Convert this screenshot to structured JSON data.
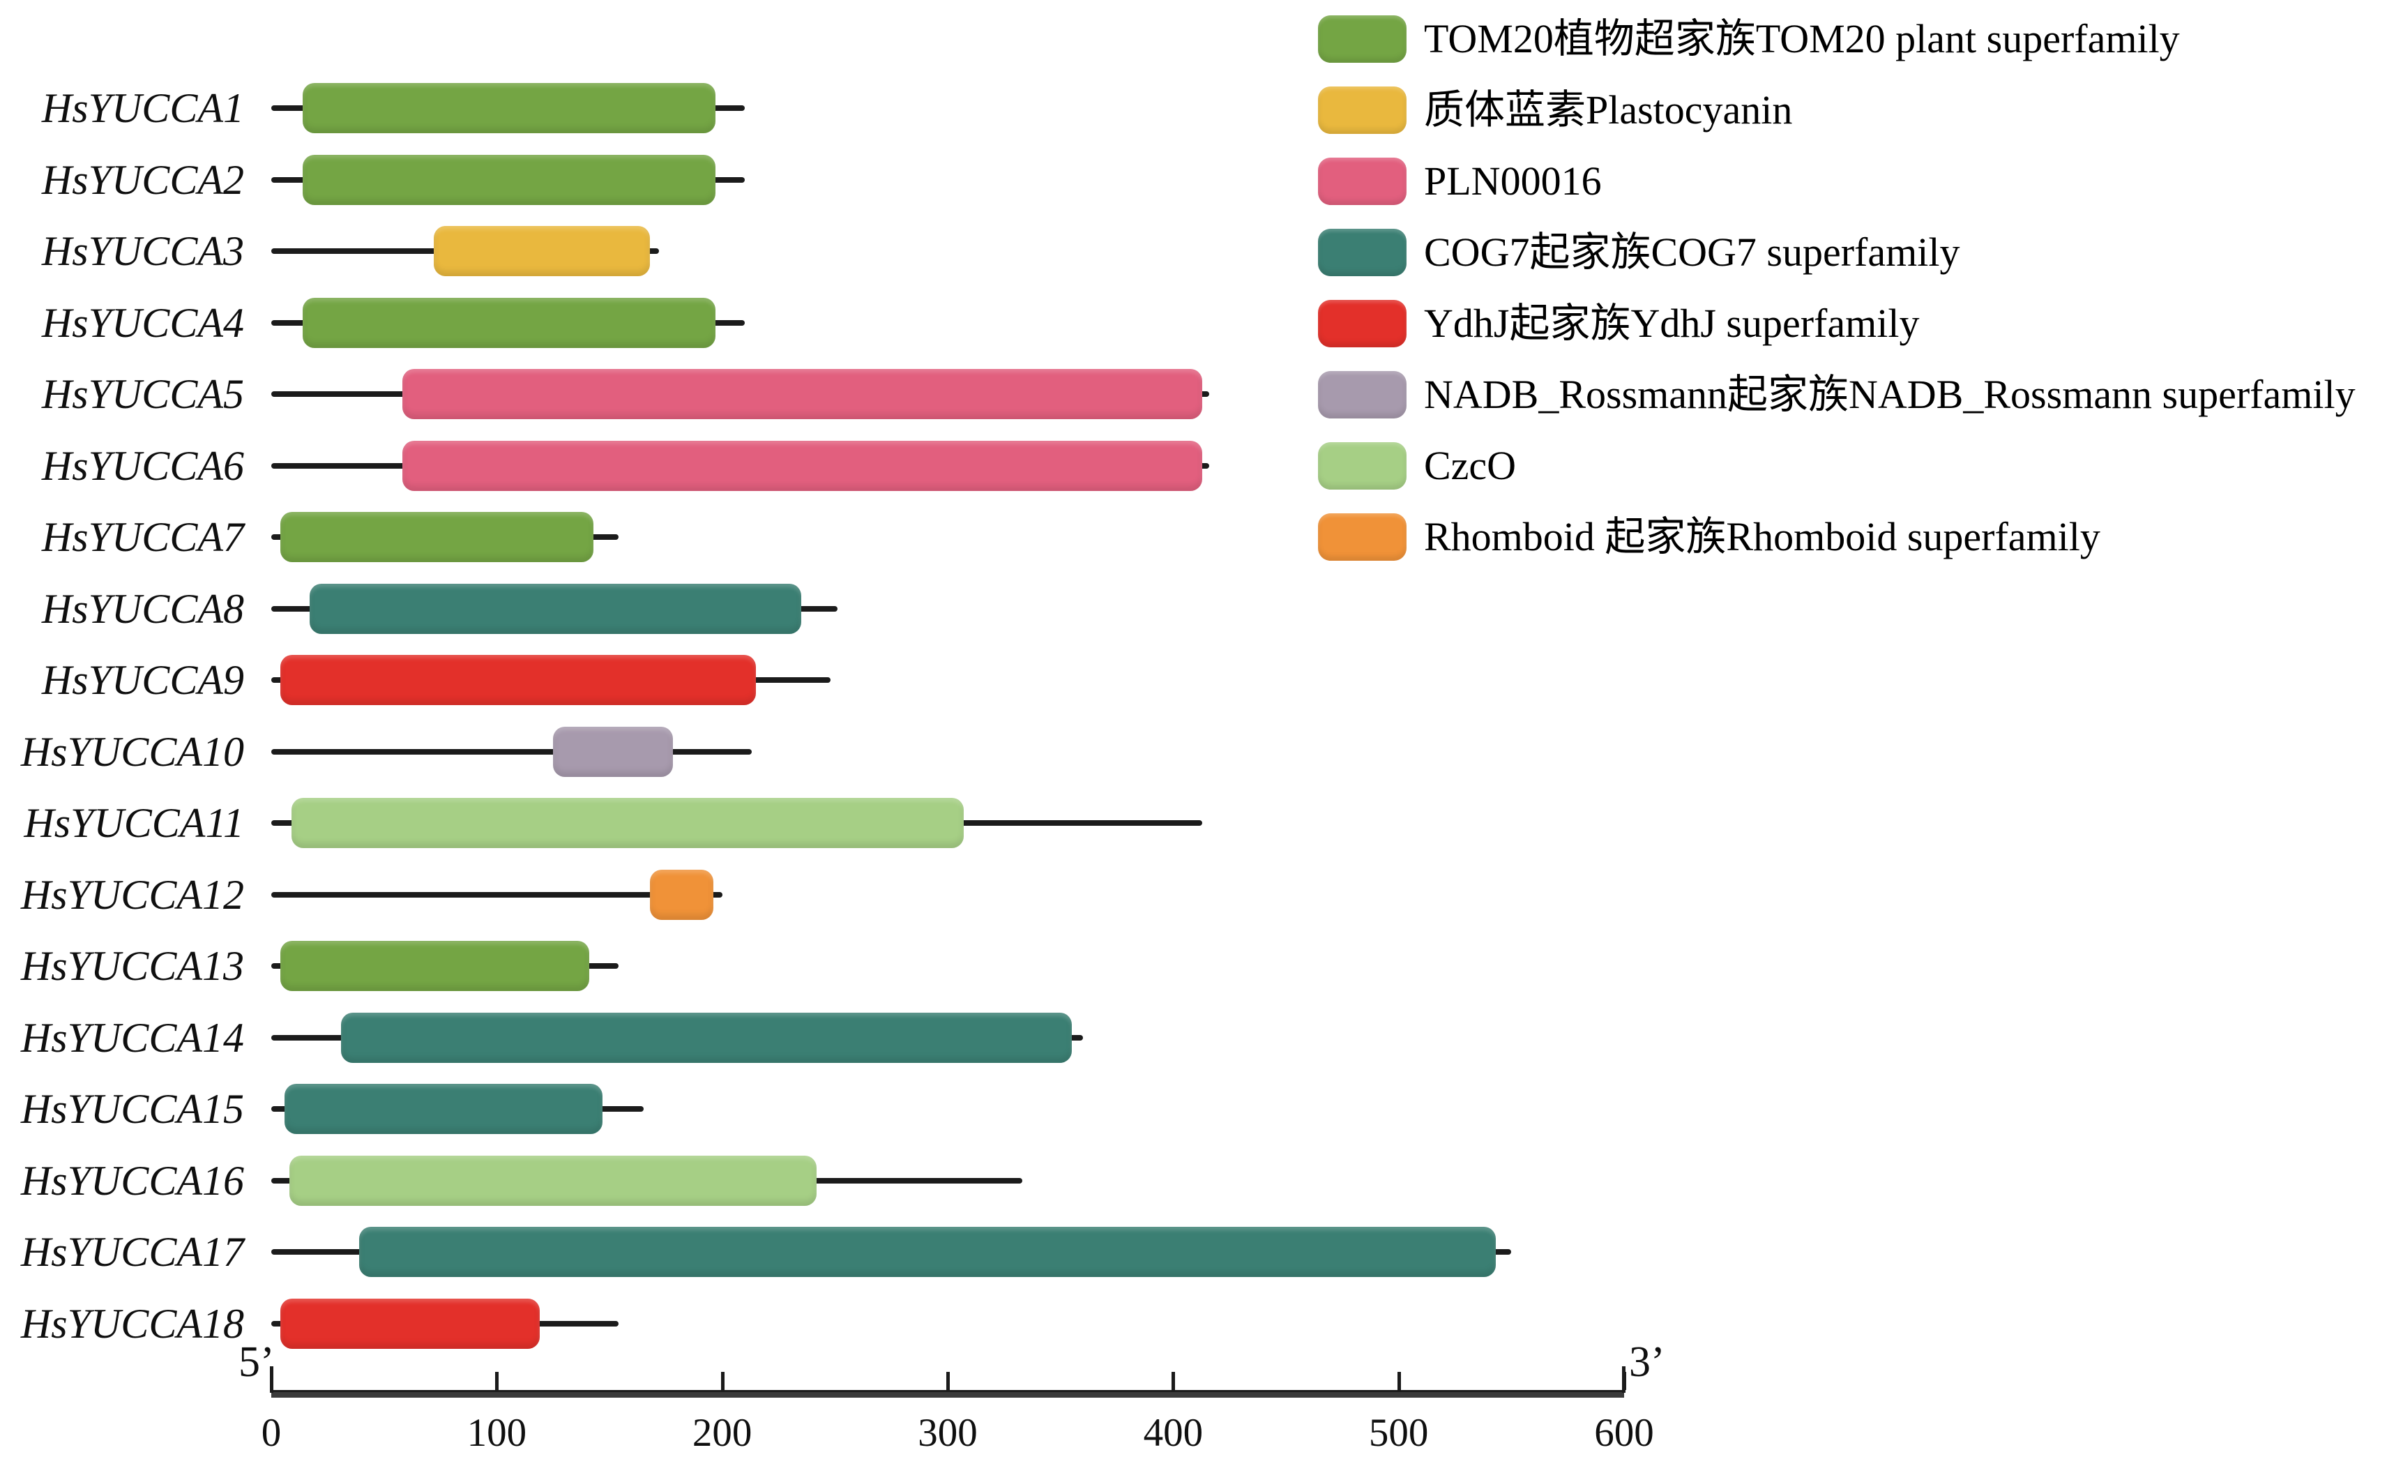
{
  "chart_data": {
    "type": "bar",
    "subtype": "gene-domain-architecture",
    "orientation": "horizontal",
    "x_axis": {
      "min": 0,
      "max": 600,
      "ticks": [
        0,
        100,
        200,
        300,
        400,
        500,
        600
      ],
      "left_label": "5’",
      "right_label": "3’",
      "grid": false
    },
    "rows": [
      {
        "gene": "HsYUCCA1",
        "domain": "TOM20 plant superfamily",
        "color": "tom20",
        "line_start": 0,
        "line_end": 210,
        "domain_start": 14,
        "domain_end": 197
      },
      {
        "gene": "HsYUCCA2",
        "domain": "TOM20 plant superfamily",
        "color": "tom20",
        "line_start": 0,
        "line_end": 210,
        "domain_start": 14,
        "domain_end": 197
      },
      {
        "gene": "HsYUCCA3",
        "domain": "Plastocyanin",
        "color": "plastocyanin",
        "line_start": 0,
        "line_end": 172,
        "domain_start": 72,
        "domain_end": 168
      },
      {
        "gene": "HsYUCCA4",
        "domain": "TOM20 plant superfamily",
        "color": "tom20",
        "line_start": 0,
        "line_end": 210,
        "domain_start": 14,
        "domain_end": 197
      },
      {
        "gene": "HsYUCCA5",
        "domain": "PLN00016",
        "color": "pln00016",
        "line_start": 0,
        "line_end": 416,
        "domain_start": 58,
        "domain_end": 413
      },
      {
        "gene": "HsYUCCA6",
        "domain": "PLN00016",
        "color": "pln00016",
        "line_start": 0,
        "line_end": 416,
        "domain_start": 58,
        "domain_end": 413
      },
      {
        "gene": "HsYUCCA7",
        "domain": "TOM20 plant superfamily",
        "color": "tom20",
        "line_start": 0,
        "line_end": 154,
        "domain_start": 4,
        "domain_end": 143
      },
      {
        "gene": "HsYUCCA8",
        "domain": "COG7 superfamily",
        "color": "cog7",
        "line_start": 0,
        "line_end": 251,
        "domain_start": 17,
        "domain_end": 235
      },
      {
        "gene": "HsYUCCA9",
        "domain": "YdhJ superfamily",
        "color": "ydhj",
        "line_start": 0,
        "line_end": 248,
        "domain_start": 4,
        "domain_end": 215
      },
      {
        "gene": "HsYUCCA10",
        "domain": "NADB_Rossmann superfamily",
        "color": "nadb",
        "line_start": 0,
        "line_end": 213,
        "domain_start": 125,
        "domain_end": 178
      },
      {
        "gene": "HsYUCCA11",
        "domain": "CzcO",
        "color": "czco",
        "line_start": 0,
        "line_end": 413,
        "domain_start": 9,
        "domain_end": 307
      },
      {
        "gene": "HsYUCCA12",
        "domain": "Rhomboid superfamily",
        "color": "rhomboid",
        "line_start": 0,
        "line_end": 200,
        "domain_start": 168,
        "domain_end": 196
      },
      {
        "gene": "HsYUCCA13",
        "domain": "TOM20 plant superfamily",
        "color": "tom20",
        "line_start": 0,
        "line_end": 154,
        "domain_start": 4,
        "domain_end": 141
      },
      {
        "gene": "HsYUCCA14",
        "domain": "COG7 superfamily",
        "color": "cog7",
        "line_start": 0,
        "line_end": 360,
        "domain_start": 31,
        "domain_end": 355
      },
      {
        "gene": "HsYUCCA15",
        "domain": "COG7 superfamily",
        "color": "cog7",
        "line_start": 0,
        "line_end": 165,
        "domain_start": 6,
        "domain_end": 147
      },
      {
        "gene": "HsYUCCA16",
        "domain": "CzcO",
        "color": "czco",
        "line_start": 0,
        "line_end": 333,
        "domain_start": 8,
        "domain_end": 242
      },
      {
        "gene": "HsYUCCA17",
        "domain": "COG7 superfamily",
        "color": "cog7",
        "line_start": 0,
        "line_end": 550,
        "domain_start": 39,
        "domain_end": 543
      },
      {
        "gene": "HsYUCCA18",
        "domain": "YdhJ superfamily",
        "color": "ydhj",
        "line_start": 0,
        "line_end": 154,
        "domain_start": 4,
        "domain_end": 119
      }
    ],
    "legend": [
      {
        "label": "TOM20植物超家族TOM20 plant superfamily",
        "color": "tom20"
      },
      {
        "label": "质体蓝素Plastocyanin",
        "color": "plastocyanin"
      },
      {
        "label": "PLN00016",
        "color": "pln00016"
      },
      {
        "label": "COG7起家族COG7 superfamily",
        "color": "cog7"
      },
      {
        "label": "YdhJ起家族YdhJ superfamily",
        "color": "ydhj"
      },
      {
        "label": "NADB_Rossmann起家族NADB_Rossmann superfamily",
        "color": "nadb"
      },
      {
        "label": "CzcO",
        "color": "czco"
      },
      {
        "label": "Rhomboid 起家族Rhomboid superfamily",
        "color": "rhomboid"
      }
    ],
    "legend_position": "top-right",
    "colors": {
      "tom20": "#74a544",
      "plastocyanin": "#e9b83e",
      "pln00016": "#e25f7e",
      "cog7": "#3b7f73",
      "ydhj": "#e3302a",
      "nadb": "#a79aad",
      "czco": "#a6cf85",
      "rhomboid": "#f09238",
      "line": "#1b1b1b",
      "axis": "#3a3a3a",
      "text": "#0f0f0f"
    }
  }
}
